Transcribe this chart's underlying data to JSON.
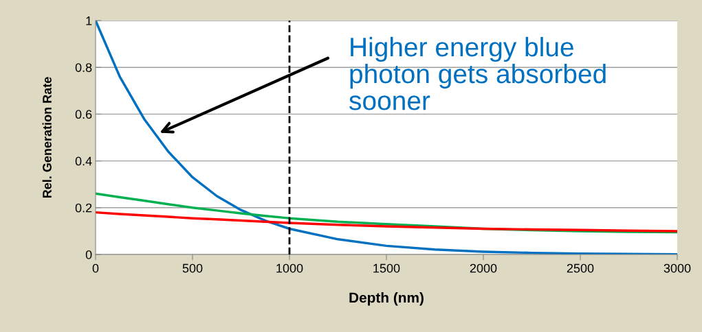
{
  "chart_data": {
    "type": "line",
    "xlabel": "Depth (nm)",
    "ylabel": "Rel. Generation Rate",
    "x": [
      0,
      125,
      250,
      375,
      500,
      625,
      750,
      875,
      1000,
      1250,
      1500,
      1750,
      2000,
      2250,
      2500,
      2750,
      3000
    ],
    "series": [
      {
        "color": "#0070c0",
        "values": [
          1,
          0.76,
          0.58,
          0.44,
          0.33,
          0.25,
          0.19,
          0.145,
          0.11,
          0.065,
          0.037,
          0.021,
          0.012,
          0.007,
          0.004,
          0.002,
          0.001
        ]
      },
      {
        "color": "#00b050",
        "values": [
          0.26,
          0.245,
          0.23,
          0.215,
          0.2,
          0.188,
          0.176,
          0.165,
          0.155,
          0.14,
          0.13,
          0.12,
          0.11,
          0.104,
          0.1,
          0.097,
          0.095
        ]
      },
      {
        "color": "#ff0000",
        "values": [
          0.18,
          0.173,
          0.167,
          0.161,
          0.155,
          0.15,
          0.145,
          0.14,
          0.135,
          0.127,
          0.12,
          0.115,
          0.11,
          0.107,
          0.105,
          0.102,
          0.1
        ]
      }
    ],
    "xlim": [
      0,
      3000
    ],
    "xticks": [
      0,
      500,
      1000,
      1500,
      2000,
      2500,
      3000
    ],
    "ylim": [
      0,
      1
    ],
    "yticks": [
      0,
      0.2,
      0.4,
      0.6,
      0.8,
      1
    ],
    "grid": "y",
    "line_style": "solid",
    "ref_lines": [
      {
        "axis": "x",
        "value": 1000,
        "color": "#000000",
        "line_style": "dashed"
      }
    ],
    "annotations": [
      {
        "text": "Higher energy blue\nphoton gets absorbed\nsooner",
        "x": 330,
        "y": 0.52
      }
    ]
  }
}
